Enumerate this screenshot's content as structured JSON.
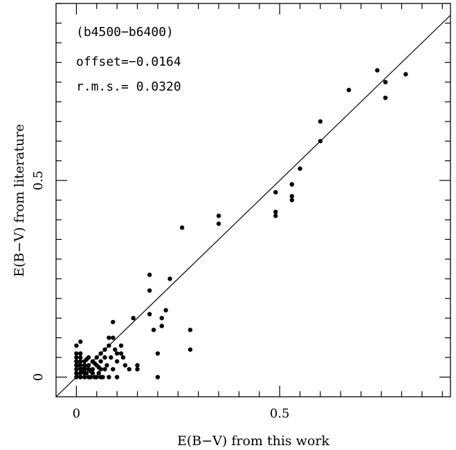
{
  "chart_data": {
    "type": "scatter",
    "title": "",
    "xlabel": "E(B−V) from this work",
    "ylabel": "E(B−V) from literature",
    "xlim": [
      -0.05,
      0.92
    ],
    "ylim": [
      -0.05,
      0.95
    ],
    "x_tick_labels": [
      {
        "value": 0,
        "label": "0"
      },
      {
        "value": 0.5,
        "label": "0.5"
      }
    ],
    "y_tick_labels": [
      {
        "value": 0,
        "label": "0"
      },
      {
        "value": 0.5,
        "label": "0.5"
      }
    ],
    "grid": false,
    "legend": "none",
    "reference_line": "y = x",
    "annotations": {
      "bands": "(b4500−b6400)",
      "offset": "offset=−0.0164",
      "rms": "r.m.s.= 0.0320"
    },
    "points": [
      [
        0.81,
        0.77
      ],
      [
        0.74,
        0.78
      ],
      [
        0.76,
        0.75
      ],
      [
        0.76,
        0.71
      ],
      [
        0.67,
        0.73
      ],
      [
        0.6,
        0.65
      ],
      [
        0.6,
        0.6
      ],
      [
        0.55,
        0.53
      ],
      [
        0.53,
        0.49
      ],
      [
        0.53,
        0.49
      ],
      [
        0.53,
        0.46
      ],
      [
        0.53,
        0.45
      ],
      [
        0.49,
        0.47
      ],
      [
        0.49,
        0.42
      ],
      [
        0.49,
        0.41
      ],
      [
        0.35,
        0.41
      ],
      [
        0.35,
        0.39
      ],
      [
        0.26,
        0.38
      ],
      [
        0.23,
        0.25
      ],
      [
        0.18,
        0.26
      ],
      [
        0.18,
        0.22
      ],
      [
        0.18,
        0.16
      ],
      [
        0.22,
        0.17
      ],
      [
        0.21,
        0.15
      ],
      [
        0.21,
        0.13
      ],
      [
        0.19,
        0.12
      ],
      [
        0.14,
        0.15
      ],
      [
        0.09,
        0.14
      ],
      [
        0.28,
        0.12
      ],
      [
        0.28,
        0.07
      ],
      [
        0.2,
        0.06
      ],
      [
        0.2,
        0.0
      ],
      [
        0.15,
        0.03
      ],
      [
        0.15,
        0.02
      ],
      [
        0.13,
        0.02
      ],
      [
        0.11,
        0.08
      ],
      [
        0.11,
        0.06
      ],
      [
        0.1,
        0.06
      ],
      [
        0.1,
        0.04
      ],
      [
        0.09,
        0.1
      ],
      [
        0.08,
        0.1
      ],
      [
        0.08,
        0.08
      ],
      [
        0.07,
        0.07
      ],
      [
        0.07,
        0.05
      ],
      [
        0.07,
        0.02
      ],
      [
        0.06,
        0.06
      ],
      [
        0.06,
        0.04
      ],
      [
        0.06,
        0.02
      ],
      [
        0.06,
        0.0
      ],
      [
        0.05,
        0.05
      ],
      [
        0.05,
        0.03
      ],
      [
        0.05,
        0.0
      ],
      [
        0.04,
        0.04
      ],
      [
        0.04,
        0.02
      ],
      [
        0.04,
        0.01
      ],
      [
        0.03,
        0.05
      ],
      [
        0.03,
        0.03
      ],
      [
        0.03,
        0.02
      ],
      [
        0.03,
        0.0
      ],
      [
        0.025,
        0.01
      ],
      [
        0.02,
        0.04
      ],
      [
        0.02,
        0.03
      ],
      [
        0.02,
        0.02
      ],
      [
        0.02,
        0.01
      ],
      [
        0.02,
        0.0
      ],
      [
        0.015,
        0.02
      ],
      [
        0.01,
        0.09
      ],
      [
        0.01,
        0.06
      ],
      [
        0.01,
        0.05
      ],
      [
        0.01,
        0.04
      ],
      [
        0.01,
        0.03
      ],
      [
        0.01,
        0.02
      ],
      [
        0.01,
        0.01
      ],
      [
        0.01,
        0.0
      ],
      [
        0.005,
        0.03
      ],
      [
        0.0,
        0.08
      ],
      [
        0.0,
        0.06
      ],
      [
        0.0,
        0.05
      ],
      [
        0.0,
        0.04
      ],
      [
        0.0,
        0.03
      ],
      [
        0.0,
        0.02
      ],
      [
        0.0,
        0.01
      ],
      [
        0.0,
        0.0
      ],
      [
        0.035,
        0.0
      ],
      [
        0.045,
        0.0
      ],
      [
        0.055,
        0.01
      ],
      [
        0.065,
        0.0
      ],
      [
        0.08,
        0.0
      ],
      [
        0.09,
        0.02
      ],
      [
        0.12,
        0.03
      ],
      [
        0.1,
        0.0
      ],
      [
        0.075,
        0.03
      ],
      [
        0.085,
        0.05
      ],
      [
        0.095,
        0.07
      ],
      [
        0.115,
        0.05
      ],
      [
        0.025,
        0.045
      ],
      [
        0.045,
        0.035
      ],
      [
        0.015,
        0.015
      ],
      [
        0.035,
        0.015
      ],
      [
        0.055,
        0.025
      ]
    ]
  }
}
